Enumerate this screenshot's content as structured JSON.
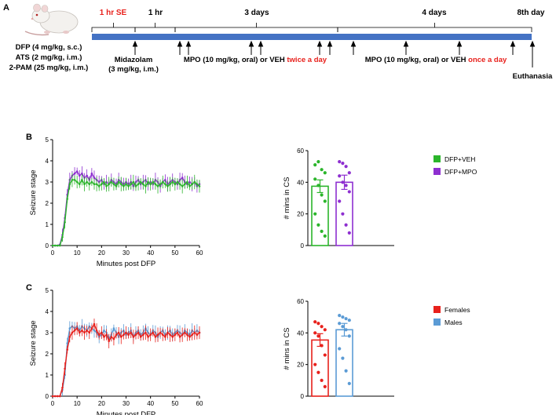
{
  "panels": {
    "a": "A",
    "b": "B",
    "c": "C"
  },
  "timeline": {
    "se_label": "1 hr SE",
    "hr1_label": "1 hr",
    "days3_label": "3 days",
    "days4_label": "4 days",
    "day8_label": "8th day",
    "treatment_lines": [
      "DFP (4 mg/kg, s.c.)",
      "ATS (2 mg/kg, i.m.)",
      "2-PAM (25 mg/kg, i.m.)"
    ],
    "midazolam_lines": [
      "Midazolam",
      "(3 mg/kg, i.m.)"
    ],
    "mpo1_text": "MPO (10 mg/kg, oral) or VEH ",
    "mpo1_red": "twice a day",
    "mpo2_text": "MPO (10 mg/kg, oral) or VEH ",
    "mpo2_red": "once a day",
    "euthanasia": "Euthanasia",
    "colors": {
      "bar": "#4472c4",
      "red": "#e8211c"
    }
  },
  "chart_data": [
    {
      "type": "line",
      "panel": "B",
      "xlabel": "Minutes post DFP",
      "ylabel": "Seizure stage",
      "xlim": [
        0,
        60
      ],
      "ylim": [
        0,
        5
      ],
      "xticks": [
        0,
        10,
        20,
        30,
        40,
        50,
        60
      ],
      "yticks": [
        0,
        1,
        2,
        3,
        4,
        5
      ],
      "series": [
        {
          "color": "#8e2fd0",
          "points": [
            [
              0,
              0
            ],
            [
              1,
              0
            ],
            [
              2,
              0
            ],
            [
              3,
              0.05
            ],
            [
              4,
              0.5
            ],
            [
              5,
              1.3
            ],
            [
              6,
              2.4
            ],
            [
              7,
              3.1
            ],
            [
              8,
              3.3
            ],
            [
              9,
              3.4
            ],
            [
              10,
              3.5
            ],
            [
              11,
              3.3
            ],
            [
              12,
              3.4
            ],
            [
              13,
              3.2
            ],
            [
              14,
              3.3
            ],
            [
              15,
              3.1
            ],
            [
              16,
              3.4
            ],
            [
              17,
              3.2
            ],
            [
              18,
              3.1
            ],
            [
              19,
              3.0
            ],
            [
              20,
              3.1
            ],
            [
              21,
              2.9
            ],
            [
              22,
              3.0
            ],
            [
              23,
              2.9
            ],
            [
              24,
              3.1
            ],
            [
              25,
              3.0
            ],
            [
              26,
              2.9
            ],
            [
              27,
              3.1
            ],
            [
              28,
              3.0
            ],
            [
              29,
              2.9
            ],
            [
              30,
              3.0
            ],
            [
              31,
              2.9
            ],
            [
              32,
              3.0
            ],
            [
              33,
              2.8
            ],
            [
              34,
              3.0
            ],
            [
              35,
              3.1
            ],
            [
              36,
              2.9
            ],
            [
              37,
              3.0
            ],
            [
              38,
              3.1
            ],
            [
              39,
              2.9
            ],
            [
              40,
              3.0
            ],
            [
              41,
              2.9
            ],
            [
              42,
              3.1
            ],
            [
              43,
              3.0
            ],
            [
              44,
              2.8
            ],
            [
              45,
              3.0
            ],
            [
              46,
              3.1
            ],
            [
              47,
              2.9
            ],
            [
              48,
              3.0
            ],
            [
              49,
              3.1
            ],
            [
              50,
              3.0
            ],
            [
              51,
              2.9
            ],
            [
              52,
              3.1
            ],
            [
              53,
              3.2
            ],
            [
              54,
              3.0
            ],
            [
              55,
              2.9
            ],
            [
              56,
              3.0
            ],
            [
              57,
              2.9
            ],
            [
              58,
              3.0
            ],
            [
              59,
              2.8
            ],
            [
              60,
              2.9
            ]
          ]
        },
        {
          "color": "#2bb52b",
          "points": [
            [
              0,
              0
            ],
            [
              1,
              0
            ],
            [
              2,
              0
            ],
            [
              3,
              0
            ],
            [
              4,
              0.4
            ],
            [
              5,
              1.1
            ],
            [
              6,
              2.2
            ],
            [
              7,
              2.9
            ],
            [
              8,
              3.1
            ],
            [
              9,
              3.1
            ],
            [
              10,
              3.0
            ],
            [
              11,
              2.9
            ],
            [
              12,
              3.1
            ],
            [
              13,
              2.9
            ],
            [
              14,
              3.0
            ],
            [
              15,
              2.9
            ],
            [
              16,
              3.0
            ],
            [
              17,
              2.9
            ],
            [
              18,
              2.9
            ],
            [
              19,
              2.8
            ],
            [
              20,
              2.9
            ],
            [
              21,
              3.0
            ],
            [
              22,
              2.8
            ],
            [
              23,
              2.9
            ],
            [
              24,
              3.0
            ],
            [
              25,
              2.9
            ],
            [
              26,
              2.8
            ],
            [
              27,
              3.0
            ],
            [
              28,
              2.9
            ],
            [
              29,
              2.8
            ],
            [
              30,
              2.9
            ],
            [
              31,
              2.8
            ],
            [
              32,
              2.9
            ],
            [
              33,
              3.0
            ],
            [
              34,
              2.8
            ],
            [
              35,
              2.9
            ],
            [
              36,
              3.0
            ],
            [
              37,
              2.9
            ],
            [
              38,
              2.8
            ],
            [
              39,
              3.0
            ],
            [
              40,
              2.9
            ],
            [
              41,
              3.0
            ],
            [
              42,
              2.9
            ],
            [
              43,
              2.8
            ],
            [
              44,
              2.9
            ],
            [
              45,
              3.0
            ],
            [
              46,
              2.9
            ],
            [
              47,
              2.8
            ],
            [
              48,
              2.9
            ],
            [
              49,
              3.0
            ],
            [
              50,
              2.9
            ],
            [
              51,
              3.0
            ],
            [
              52,
              2.9
            ],
            [
              53,
              2.8
            ],
            [
              54,
              2.9
            ],
            [
              55,
              3.0
            ],
            [
              56,
              2.8
            ],
            [
              57,
              2.9
            ],
            [
              58,
              3.0
            ],
            [
              59,
              2.9
            ],
            [
              60,
              2.8
            ]
          ]
        }
      ]
    },
    {
      "type": "bar",
      "panel": "B",
      "ylabel": "# mins in CS",
      "ylim": [
        0,
        60
      ],
      "yticks": [
        0,
        20,
        40,
        60
      ],
      "categories": [
        "DFP+VEH",
        "DFP+MPO"
      ],
      "legend": "top-right",
      "series": [
        {
          "name": "DFP+VEH",
          "color": "#2bb52b",
          "value": 37.5,
          "sem": 4,
          "points": [
            51,
            53,
            48,
            46,
            42,
            38,
            32,
            28,
            20,
            13,
            9,
            6
          ]
        },
        {
          "name": "DFP+MPO",
          "color": "#8e2fd0",
          "value": 40,
          "sem": 4.5,
          "points": [
            53,
            52,
            50,
            46,
            44,
            40,
            38,
            34,
            28,
            20,
            13,
            8
          ]
        }
      ]
    },
    {
      "type": "line",
      "panel": "C",
      "xlabel": "Minutes post DFP",
      "ylabel": "Seizure stage",
      "xlim": [
        0,
        60
      ],
      "ylim": [
        0,
        5
      ],
      "xticks": [
        0,
        10,
        20,
        30,
        40,
        50,
        60
      ],
      "yticks": [
        0,
        1,
        2,
        3,
        4,
        5
      ],
      "series": [
        {
          "color": "#5b9bd5",
          "points": [
            [
              0,
              0
            ],
            [
              1,
              0
            ],
            [
              2,
              0
            ],
            [
              3,
              0
            ],
            [
              4,
              0.3
            ],
            [
              5,
              1.0
            ],
            [
              6,
              2.5
            ],
            [
              7,
              3.2
            ],
            [
              8,
              3.3
            ],
            [
              9,
              3.2
            ],
            [
              10,
              3.3
            ],
            [
              11,
              3.1
            ],
            [
              12,
              3.3
            ],
            [
              13,
              3.2
            ],
            [
              14,
              3.1
            ],
            [
              15,
              3.3
            ],
            [
              16,
              3.2
            ],
            [
              17,
              3.1
            ],
            [
              18,
              3.0
            ],
            [
              19,
              2.8
            ],
            [
              20,
              2.9
            ],
            [
              21,
              3.1
            ],
            [
              22,
              3.0
            ],
            [
              23,
              2.7
            ],
            [
              24,
              2.9
            ],
            [
              25,
              3.2
            ],
            [
              26,
              3.0
            ],
            [
              27,
              2.8
            ],
            [
              28,
              3.0
            ],
            [
              29,
              3.1
            ],
            [
              30,
              2.9
            ],
            [
              31,
              3.0
            ],
            [
              32,
              3.1
            ],
            [
              33,
              2.8
            ],
            [
              34,
              3.0
            ],
            [
              35,
              3.1
            ],
            [
              36,
              2.9
            ],
            [
              37,
              3.0
            ],
            [
              38,
              3.2
            ],
            [
              39,
              3.0
            ],
            [
              40,
              2.9
            ],
            [
              41,
              3.1
            ],
            [
              42,
              3.0
            ],
            [
              43,
              2.8
            ],
            [
              44,
              3.0
            ],
            [
              45,
              3.1
            ],
            [
              46,
              2.9
            ],
            [
              47,
              3.0
            ],
            [
              48,
              3.1
            ],
            [
              49,
              2.9
            ],
            [
              50,
              3.0
            ],
            [
              51,
              3.1
            ],
            [
              52,
              3.0
            ],
            [
              53,
              2.9
            ],
            [
              54,
              3.1
            ],
            [
              55,
              3.0
            ],
            [
              56,
              2.9
            ],
            [
              57,
              3.1
            ],
            [
              58,
              3.0
            ],
            [
              59,
              3.1
            ],
            [
              60,
              3.0
            ]
          ]
        },
        {
          "color": "#e8211c",
          "points": [
            [
              0,
              0
            ],
            [
              1,
              0
            ],
            [
              2,
              0
            ],
            [
              3,
              0
            ],
            [
              4,
              0.4
            ],
            [
              5,
              1.3
            ],
            [
              6,
              2.2
            ],
            [
              7,
              2.8
            ],
            [
              8,
              3.0
            ],
            [
              9,
              3.1
            ],
            [
              10,
              3.2
            ],
            [
              11,
              3.0
            ],
            [
              12,
              3.1
            ],
            [
              13,
              3.0
            ],
            [
              14,
              3.1
            ],
            [
              15,
              3.0
            ],
            [
              16,
              3.2
            ],
            [
              17,
              3.4
            ],
            [
              18,
              3.1
            ],
            [
              19,
              2.9
            ],
            [
              20,
              3.0
            ],
            [
              21,
              2.8
            ],
            [
              22,
              2.9
            ],
            [
              23,
              2.6
            ],
            [
              24,
              2.8
            ],
            [
              25,
              2.7
            ],
            [
              26,
              2.9
            ],
            [
              27,
              3.0
            ],
            [
              28,
              2.8
            ],
            [
              29,
              2.9
            ],
            [
              30,
              3.0
            ],
            [
              31,
              2.9
            ],
            [
              32,
              3.0
            ],
            [
              33,
              2.8
            ],
            [
              34,
              2.9
            ],
            [
              35,
              3.0
            ],
            [
              36,
              2.8
            ],
            [
              37,
              2.9
            ],
            [
              38,
              3.0
            ],
            [
              39,
              2.8
            ],
            [
              40,
              2.9
            ],
            [
              41,
              3.0
            ],
            [
              42,
              2.8
            ],
            [
              43,
              2.9
            ],
            [
              44,
              3.0
            ],
            [
              45,
              2.9
            ],
            [
              46,
              2.8
            ],
            [
              47,
              3.0
            ],
            [
              48,
              2.9
            ],
            [
              49,
              2.8
            ],
            [
              50,
              2.9
            ],
            [
              51,
              3.0
            ],
            [
              52,
              2.8
            ],
            [
              53,
              2.9
            ],
            [
              54,
              3.0
            ],
            [
              55,
              2.9
            ],
            [
              56,
              2.8
            ],
            [
              57,
              2.9
            ],
            [
              58,
              3.0
            ],
            [
              59,
              2.9
            ],
            [
              60,
              3.0
            ]
          ]
        }
      ]
    },
    {
      "type": "bar",
      "panel": "C",
      "ylabel": "# mins in CS",
      "ylim": [
        0,
        60
      ],
      "yticks": [
        0,
        20,
        40,
        60
      ],
      "categories": [
        "Females",
        "Males"
      ],
      "legend": "top-right",
      "series": [
        {
          "name": "Females",
          "color": "#e8211c",
          "value": 35.5,
          "sem": 4,
          "points": [
            47,
            46,
            44,
            42,
            40,
            38,
            32,
            26,
            20,
            15,
            10,
            6
          ]
        },
        {
          "name": "Males",
          "color": "#5b9bd5",
          "value": 42,
          "sem": 4,
          "points": [
            51,
            50,
            49,
            48,
            46,
            44,
            42,
            38,
            30,
            24,
            16,
            8
          ]
        }
      ]
    }
  ]
}
